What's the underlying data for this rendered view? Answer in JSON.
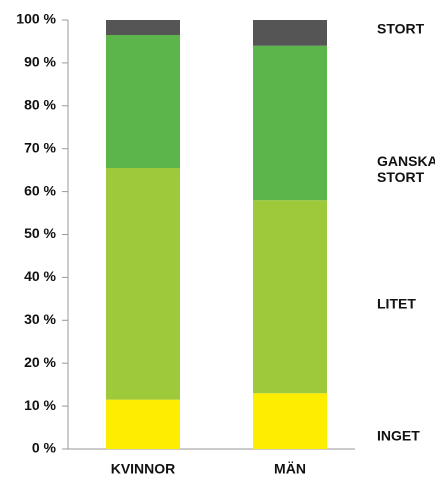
{
  "chart_data": {
    "type": "stacked_bar",
    "categories": [
      "KVINNOR",
      "MÄN"
    ],
    "series": [
      {
        "name": "INGET",
        "color": "#ffed00",
        "values": [
          11.5,
          13
        ]
      },
      {
        "name": "LITET",
        "color": "#9dc93b",
        "values": [
          54,
          45
        ]
      },
      {
        "name": "GANSKA STORT",
        "color": "#5cb54a",
        "values": [
          31,
          36
        ]
      },
      {
        "name": "STORT",
        "color": "#555555",
        "values": [
          3.5,
          6
        ]
      }
    ],
    "ylim": [
      0,
      100
    ],
    "yticks": [
      {
        "value": 0,
        "label": "0 %"
      },
      {
        "value": 10,
        "label": "10 %"
      },
      {
        "value": 20,
        "label": "20 %"
      },
      {
        "value": 30,
        "label": "30 %"
      },
      {
        "value": 40,
        "label": "40 %"
      },
      {
        "value": 50,
        "label": "50 %"
      },
      {
        "value": 60,
        "label": "60 %"
      },
      {
        "value": 70,
        "label": "70 %"
      },
      {
        "value": 80,
        "label": "80 %"
      },
      {
        "value": 90,
        "label": "90 %"
      },
      {
        "value": 100,
        "label": "100 %"
      }
    ]
  }
}
